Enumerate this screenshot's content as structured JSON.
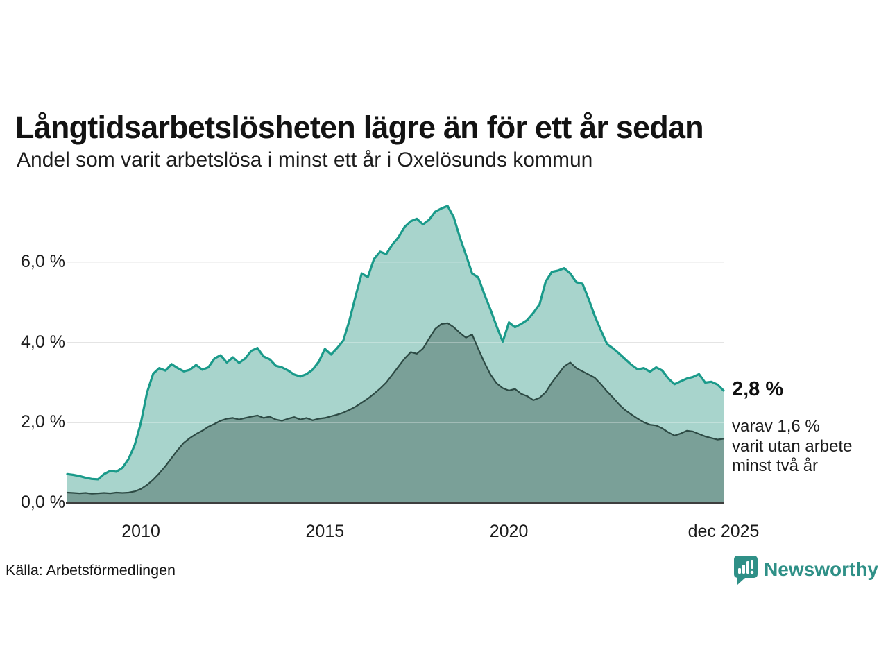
{
  "header": {
    "title": "Långtidsarbetslösheten lägre än för ett år sedan",
    "subtitle": "Andel som varit arbetslösa i minst ett år i Oxelösunds kommun"
  },
  "annotations": {
    "primary_value_label": "2,8 %",
    "secondary_lines": [
      "varav 1,6 %",
      "varit utan arbete",
      "minst två år"
    ]
  },
  "footer": {
    "source": "Källa: Arbetsförmedlingen",
    "logo_text": "Newsworthy"
  },
  "colors": {
    "total_line": "#1a9a8a",
    "total_fill": "#a8d4cc",
    "two_years_line": "#2d4a44",
    "two_years_fill": "#7aa098",
    "gridline": "#d8d8d8",
    "axis": "#3e3e3e",
    "logo_teal": "#2f9087"
  },
  "chart_data": {
    "type": "area",
    "title": "Långtidsarbetslösheten lägre än för ett år sedan",
    "subtitle": "Andel som varit arbetslösa i minst ett år i Oxelösunds kommun",
    "unit": "%",
    "x_domain": [
      2008.0,
      2025.8333
    ],
    "x_step_years": 0.166667,
    "ylim": [
      0,
      7.8
    ],
    "grid": "horizontal",
    "y_ticks": [
      {
        "value": 6,
        "label": "6,0 %"
      },
      {
        "value": 4,
        "label": "4,0 %"
      },
      {
        "value": 2,
        "label": "2,0 %"
      },
      {
        "value": 0,
        "label": "0,0 %"
      }
    ],
    "x_ticks": [
      {
        "t": 2010,
        "label": "2010"
      },
      {
        "t": 2015,
        "label": "2015"
      },
      {
        "t": 2020,
        "label": "2020"
      },
      {
        "t": 2025.8333,
        "label": "dec 2025"
      }
    ],
    "series": [
      {
        "name": "Arbetslösa minst ett år",
        "end_label": "2,8 %",
        "end_value": 2.8,
        "values": [
          0.72,
          0.7,
          0.67,
          0.63,
          0.6,
          0.59,
          0.72,
          0.8,
          0.78,
          0.88,
          1.1,
          1.45,
          2.0,
          2.75,
          3.22,
          3.36,
          3.3,
          3.46,
          3.36,
          3.28,
          3.32,
          3.44,
          3.32,
          3.38,
          3.6,
          3.68,
          3.5,
          3.63,
          3.49,
          3.6,
          3.79,
          3.86,
          3.65,
          3.58,
          3.42,
          3.38,
          3.3,
          3.2,
          3.15,
          3.21,
          3.32,
          3.52,
          3.84,
          3.7,
          3.86,
          4.05,
          4.55,
          5.15,
          5.72,
          5.63,
          6.08,
          6.26,
          6.2,
          6.44,
          6.62,
          6.88,
          7.02,
          7.08,
          6.94,
          7.06,
          7.26,
          7.34,
          7.4,
          7.12,
          6.62,
          6.18,
          5.72,
          5.62,
          5.2,
          4.82,
          4.4,
          4.02,
          4.5,
          4.38,
          4.46,
          4.56,
          4.74,
          4.95,
          5.52,
          5.76,
          5.79,
          5.85,
          5.72,
          5.5,
          5.46,
          5.08,
          4.66,
          4.3,
          3.96,
          3.85,
          3.72,
          3.58,
          3.44,
          3.33,
          3.36,
          3.27,
          3.38,
          3.3,
          3.1,
          2.96,
          3.03,
          3.1,
          3.14,
          3.21,
          3.0,
          3.02,
          2.95,
          2.8
        ]
      },
      {
        "name": "Varav utan arbete minst två år",
        "end_label": "varav 1,6 %",
        "end_value": 1.6,
        "values": [
          0.26,
          0.25,
          0.24,
          0.25,
          0.23,
          0.24,
          0.25,
          0.24,
          0.26,
          0.25,
          0.26,
          0.29,
          0.35,
          0.45,
          0.58,
          0.74,
          0.92,
          1.12,
          1.32,
          1.5,
          1.62,
          1.72,
          1.8,
          1.9,
          1.97,
          2.05,
          2.1,
          2.12,
          2.08,
          2.12,
          2.15,
          2.18,
          2.12,
          2.15,
          2.08,
          2.05,
          2.1,
          2.14,
          2.08,
          2.12,
          2.06,
          2.1,
          2.12,
          2.16,
          2.2,
          2.25,
          2.32,
          2.4,
          2.5,
          2.6,
          2.72,
          2.85,
          3.0,
          3.2,
          3.4,
          3.6,
          3.76,
          3.72,
          3.85,
          4.1,
          4.34,
          4.46,
          4.48,
          4.38,
          4.24,
          4.12,
          4.2,
          3.84,
          3.5,
          3.2,
          2.98,
          2.86,
          2.8,
          2.84,
          2.72,
          2.66,
          2.56,
          2.62,
          2.76,
          3.0,
          3.2,
          3.4,
          3.5,
          3.36,
          3.28,
          3.2,
          3.12,
          2.96,
          2.78,
          2.62,
          2.45,
          2.31,
          2.2,
          2.1,
          2.01,
          1.95,
          1.93,
          1.86,
          1.76,
          1.68,
          1.73,
          1.8,
          1.78,
          1.72,
          1.66,
          1.62,
          1.58,
          1.6
        ]
      }
    ]
  }
}
